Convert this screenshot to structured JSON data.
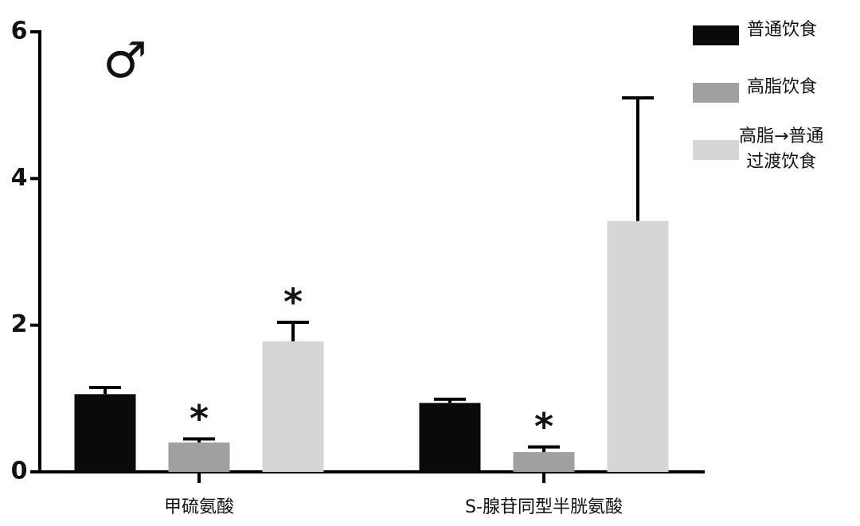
{
  "chart_data": {
    "type": "bar",
    "annotation": "♂",
    "categories": [
      "甲硫氨酸",
      "S-腺苷同型半胱氨酸"
    ],
    "series": [
      {
        "name": "普通饮食",
        "color": "#0a0a0a",
        "values": [
          1.06,
          0.94
        ],
        "errors": [
          0.09,
          0.05
        ],
        "marks": [
          null,
          null
        ]
      },
      {
        "name": "高脂饮食",
        "color": "#a0a0a0",
        "values": [
          0.4,
          0.27
        ],
        "errors": [
          0.05,
          0.07
        ],
        "marks": [
          "*",
          "*"
        ]
      },
      {
        "name": "高脂→普通\n过渡饮食",
        "color": "#d6d6d6",
        "values": [
          1.78,
          3.42
        ],
        "errors": [
          0.26,
          1.68
        ],
        "marks": [
          "*",
          null
        ]
      }
    ],
    "ylim": [
      0,
      6
    ],
    "yticks": [
      0,
      2,
      4,
      6
    ],
    "legend": "upper right"
  }
}
